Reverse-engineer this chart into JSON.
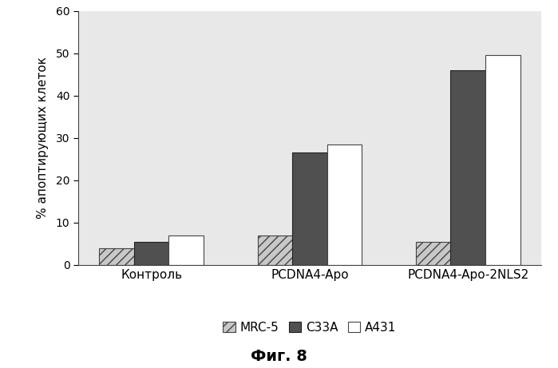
{
  "categories": [
    "Контроль",
    "PCDNA4-Apo",
    "PCDNA4-Apo-2NLS2"
  ],
  "series": {
    "MRC-5": [
      4.0,
      7.0,
      5.5
    ],
    "C33A": [
      5.5,
      26.5,
      46.0
    ],
    "A431": [
      7.0,
      28.5,
      49.5
    ]
  },
  "colors": {
    "MRC-5": "#c8c8c8",
    "C33A": "#505050",
    "A431": "#ffffff"
  },
  "hatch": {
    "MRC-5": "///",
    "C33A": "",
    "A431": ""
  },
  "bar_edge_colors": {
    "MRC-5": "#444444",
    "C33A": "#222222",
    "A431": "#444444"
  },
  "ylabel": "% апоптирующих клеток",
  "ylim": [
    0,
    60
  ],
  "yticks": [
    0,
    10,
    20,
    30,
    40,
    50,
    60
  ],
  "caption": "Фиг. 8",
  "plot_bg_color": "#e8e8e8",
  "outer_bg_color": "#ffffff",
  "bar_width": 0.22
}
